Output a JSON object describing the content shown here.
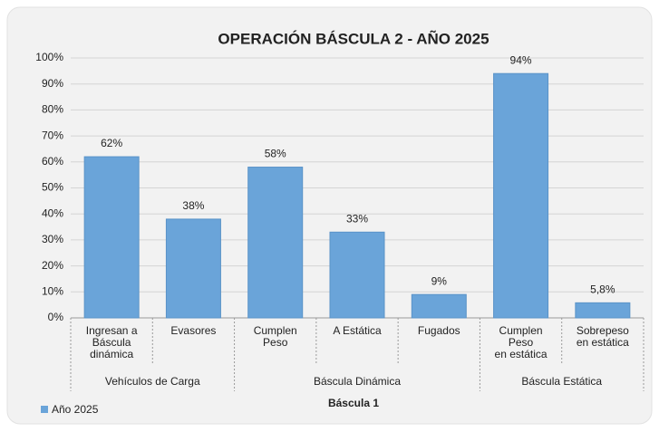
{
  "chart_data": {
    "type": "bar",
    "title": "OPERACIÓN BÁSCULA 2 - AÑO 2025",
    "x_label": "Báscula 1",
    "categories": [
      "Ingresan a\nBáscula\ndinámica",
      "Evasores",
      "Cumplen\nPeso",
      "A Estática",
      "Fugados",
      "Cumplen\nPeso\nen estática",
      "Sobrepeso\nen estática"
    ],
    "groups": [
      {
        "name": "Vehículos de Carga",
        "span": 2
      },
      {
        "name": "Báscula Dinámica",
        "span": 3
      },
      {
        "name": "Báscula Estática",
        "span": 2
      }
    ],
    "series": [
      {
        "name": "Año 2025",
        "color": "#6aa4d9",
        "values": [
          62,
          38,
          58,
          33,
          9,
          94,
          5.8
        ],
        "value_labels": [
          "62%",
          "38%",
          "58%",
          "33%",
          "9%",
          "94%",
          "5,8%"
        ]
      }
    ],
    "ylim": [
      0,
      100
    ],
    "yticks": [
      {
        "value": 0,
        "label": "0%"
      },
      {
        "value": 10,
        "label": "10%"
      },
      {
        "value": 20,
        "label": "20%"
      },
      {
        "value": 30,
        "label": "30%"
      },
      {
        "value": 40,
        "label": "40%"
      },
      {
        "value": 50,
        "label": "50%"
      },
      {
        "value": 60,
        "label": "60%"
      },
      {
        "value": 70,
        "label": "70%"
      },
      {
        "value": 80,
        "label": "80%"
      },
      {
        "value": 90,
        "label": "90%"
      },
      {
        "value": 100,
        "label": "100%"
      }
    ],
    "grid": true,
    "legend": "bottom-left"
  }
}
